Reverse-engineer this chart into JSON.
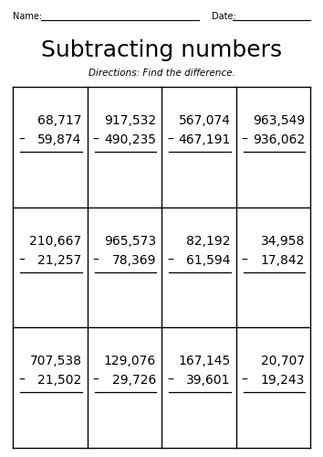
{
  "title": "Subtracting numbers",
  "directions": "Directions: Find the difference.",
  "name_label": "Name:",
  "date_label": "Date:",
  "bg_color": "#ffffff",
  "border_color": "#000000",
  "text_color": "#000000",
  "problems": [
    [
      "68,717",
      "917,532",
      "567,074",
      "963,549"
    ],
    [
      "59,874",
      "490,235",
      "467,191",
      "936,062"
    ],
    [
      "210,667",
      "965,573",
      "82,192",
      "34,958"
    ],
    [
      "21,257",
      "78,369",
      "61,594",
      "17,842"
    ],
    [
      "707,538",
      "129,076",
      "167,145",
      "20,707"
    ],
    [
      "21,502",
      "29,726",
      "39,601",
      "19,243"
    ]
  ],
  "rows": 3,
  "cols": 4,
  "title_fontsize": 18,
  "dir_fontsize": 7.5,
  "num_fontsize": 10,
  "header_fontsize": 7
}
